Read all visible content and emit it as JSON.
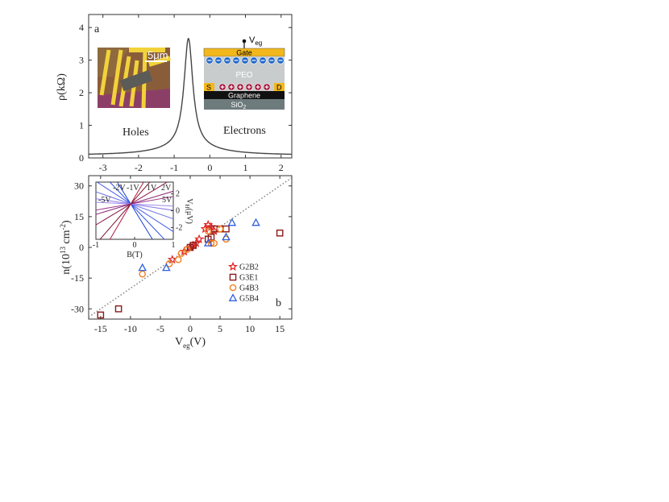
{
  "panel_a": {
    "letter": "a",
    "ylabel": "ρ(kΩ)",
    "holes_label": "Holes",
    "electrons_label": "Electrons",
    "scale_bar_label": "5μm",
    "stack": {
      "veg_label": "V",
      "veg_sub": "eg",
      "gate": "Gate",
      "peo": "PEO",
      "source": "S",
      "drain": "D",
      "graphene": "Graphene",
      "sio2": "SiO",
      "sio2_sub": "2"
    },
    "colors": {
      "gate": "#f2b71b",
      "peo": "#c9cccc",
      "graphene": "#111111",
      "sio2": "#6e7b7d",
      "electron": "#1f66c8",
      "hole": "#a3143a"
    }
  },
  "panel_b": {
    "letter": "b",
    "ylabel_main": "n(10",
    "ylabel_sup": "13",
    "ylabel_unit": " cm",
    "ylabel_sup2": "-2",
    "ylabel_end": ")",
    "xlabel_main": "V",
    "xlabel_sub": "eg",
    "xlabel_end": "(V)",
    "inset": {
      "xlabel": "B(T)",
      "ylabel": "V",
      "ylabel_sub": "H",
      "ylabel_end": "(μV)",
      "x_ticks": [
        "-1",
        "0",
        "1"
      ],
      "y_ticks": [
        "2",
        "0",
        "-2"
      ],
      "line_labels": [
        "-2V",
        "-1V",
        "1V",
        "2V",
        "-5V",
        "5V"
      ]
    }
  },
  "chart_data": [
    {
      "type": "line",
      "panel": "a",
      "xlim": [
        -3.4,
        2.3
      ],
      "ylim": [
        0,
        4.4
      ],
      "x_ticks": [
        -3,
        -2,
        -1,
        0,
        1,
        2
      ],
      "y_ticks": [
        0,
        1,
        2,
        3,
        4
      ],
      "series": [
        {
          "peak_x": -0.6,
          "peak_y": 4.15,
          "baseline": 0.08,
          "color": "#444444"
        }
      ]
    },
    {
      "type": "scatter",
      "panel": "b",
      "xlim": [
        -17,
        17
      ],
      "ylim": [
        -35,
        35
      ],
      "x_ticks": [
        -15,
        -10,
        -5,
        0,
        5,
        10,
        15
      ],
      "y_ticks": [
        -30,
        -15,
        0,
        15,
        30
      ],
      "guide_line": {
        "slope": 2,
        "intercept": 0,
        "style": "dotted",
        "color": "#888888"
      },
      "series": [
        {
          "name": "G2B2",
          "marker": "star",
          "color": "#e02020",
          "points": [
            [
              -3,
              -6
            ],
            [
              -1,
              -2
            ],
            [
              0,
              0
            ],
            [
              0.5,
              1
            ],
            [
              1,
              2
            ],
            [
              1.5,
              4
            ],
            [
              2.5,
              9
            ],
            [
              3,
              11
            ],
            [
              3.5,
              10
            ],
            [
              4,
              8
            ]
          ]
        },
        {
          "name": "G3E1",
          "marker": "square",
          "color": "#8b1a1a",
          "points": [
            [
              -15,
              -33
            ],
            [
              -12,
              -30
            ],
            [
              0,
              0
            ],
            [
              0.5,
              1
            ],
            [
              3,
              4
            ],
            [
              3.5,
              5
            ],
            [
              4,
              9
            ],
            [
              5,
              9
            ],
            [
              6,
              9
            ],
            [
              15,
              7
            ]
          ]
        },
        {
          "name": "G4B3",
          "marker": "circle",
          "color": "#f08020",
          "points": [
            [
              -8,
              -13
            ],
            [
              -3.5,
              -8
            ],
            [
              -2,
              -6
            ],
            [
              -1.5,
              -3
            ],
            [
              -0.5,
              -1
            ],
            [
              3,
              8
            ],
            [
              3.5,
              2
            ],
            [
              4,
              2
            ],
            [
              5,
              9
            ],
            [
              6,
              4
            ]
          ]
        },
        {
          "name": "G5B4",
          "marker": "triangle",
          "color": "#2f5fe0",
          "points": [
            [
              -8,
              -10
            ],
            [
              -4,
              -10
            ],
            [
              3,
              2
            ],
            [
              6,
              5
            ],
            [
              7,
              12
            ],
            [
              11,
              12
            ]
          ]
        }
      ]
    }
  ]
}
